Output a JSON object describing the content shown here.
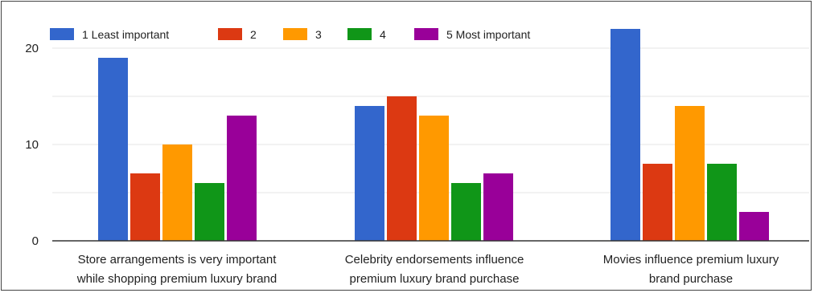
{
  "chart_data": {
    "type": "bar",
    "categories": [
      [
        "Store arrangements is very important",
        "while shopping premium luxury brand"
      ],
      [
        "Celebrity endorsements influence",
        "premium luxury brand purchase"
      ],
      [
        "Movies influence premium luxury",
        "brand purchase"
      ]
    ],
    "series": [
      {
        "name": "1 Least important",
        "color": "#3366cc",
        "values": [
          19,
          14,
          22
        ]
      },
      {
        "name": "2",
        "color": "#dc3912",
        "values": [
          7,
          15,
          8
        ]
      },
      {
        "name": "3",
        "color": "#ff9900",
        "values": [
          10,
          13,
          14
        ]
      },
      {
        "name": "4",
        "color": "#109618",
        "values": [
          6,
          6,
          8
        ]
      },
      {
        "name": "5 Most important",
        "color": "#990099",
        "values": [
          13,
          7,
          3
        ]
      }
    ],
    "yticks": [
      "0",
      "10",
      "20"
    ],
    "ytick_values": [
      0,
      10,
      20
    ],
    "ylim": [
      0,
      23
    ],
    "grid": true,
    "legend": "top-left"
  }
}
